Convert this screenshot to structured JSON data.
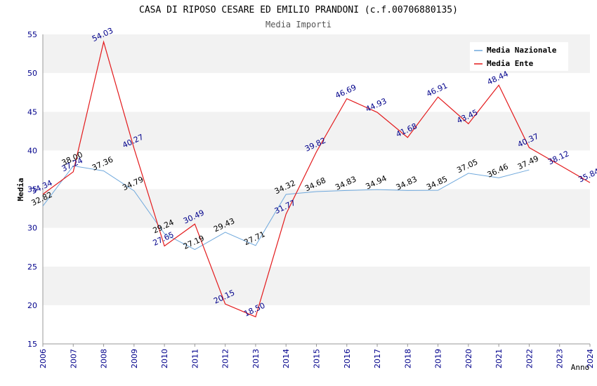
{
  "chart_data": {
    "type": "line",
    "title": "CASA DI RIPOSO CESARE ED EMILIO PRANDONI (c.f.00706880135)",
    "subtitle": "Media Importi",
    "xlabel": "Anno",
    "ylabel": "Media",
    "ylim": [
      15,
      55
    ],
    "yticks": [
      15,
      20,
      25,
      30,
      35,
      40,
      45,
      50,
      55
    ],
    "x": [
      "2006",
      "2007",
      "2008",
      "2009",
      "2010",
      "2011",
      "2012",
      "2013",
      "2014",
      "2015",
      "2016",
      "2017",
      "2018",
      "2019",
      "2020",
      "2021",
      "2022",
      "2023",
      "2024"
    ],
    "grid": "horizontal bands",
    "legend_position": "top-right",
    "series": [
      {
        "name": "Media Nazionale",
        "color": "#6fa8dc",
        "label_color": "#000000",
        "values": [
          32.82,
          38.0,
          37.36,
          34.79,
          29.24,
          27.19,
          29.43,
          27.71,
          34.32,
          34.68,
          34.83,
          34.94,
          34.83,
          34.85,
          37.05,
          36.46,
          37.49,
          null,
          null
        ],
        "labels": [
          "32.82",
          "38.00",
          "37.36",
          "34.79",
          "29.24",
          "27.19",
          "29.43",
          "27.71",
          "34.32",
          "34.68",
          "34.83",
          "34.94",
          "34.83",
          "34.85",
          "37.05",
          "36.46",
          "37.49",
          "",
          ""
        ]
      },
      {
        "name": "Media Ente",
        "color": "#e31a1c",
        "label_color": "#00008b",
        "values": [
          34.34,
          37.24,
          54.03,
          40.27,
          27.65,
          30.49,
          20.15,
          18.5,
          31.77,
          39.82,
          46.69,
          44.93,
          41.68,
          46.91,
          43.45,
          48.44,
          40.37,
          38.12,
          35.84
        ],
        "labels": [
          "34.34",
          "37.24",
          "54.03",
          "40.27",
          "27.65",
          "30.49",
          "20.15",
          "18.50",
          "31.77",
          "39.82",
          "46.69",
          "44.93",
          "41.68",
          "46.91",
          "43.45",
          "48.44",
          "40.37",
          "38.12",
          "35.84"
        ]
      }
    ],
    "colors": {
      "band": "#f2f2f2",
      "axis": "#999999",
      "tick_label": "#00008b",
      "title": "#000000",
      "subtitle": "#555555"
    }
  }
}
